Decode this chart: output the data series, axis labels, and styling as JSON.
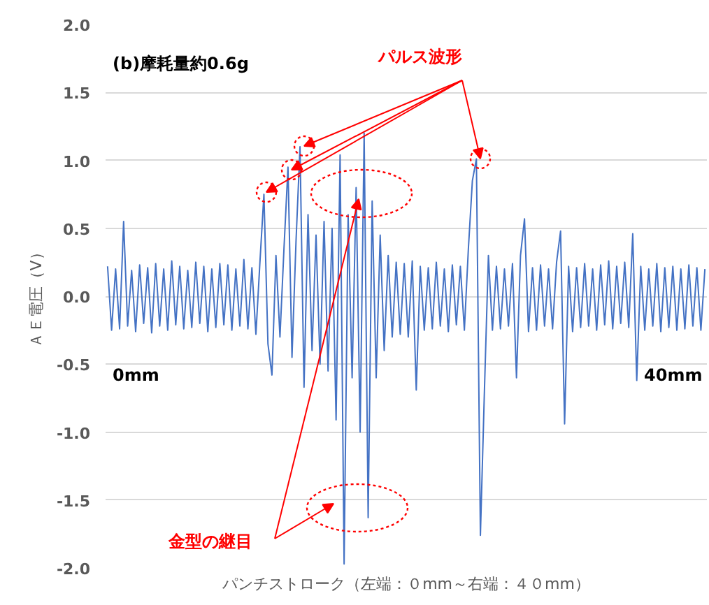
{
  "chart_data": {
    "type": "line",
    "xlabel": "パンチストローク（左端：０mm～右端：４０mm）",
    "ylabel": "ＡＥ電圧（V）",
    "annotations": [
      "(b)摩耗量約0.6g",
      "0mm",
      "40mm",
      "パルス波形",
      "金型の継目"
    ],
    "categories": [
      null,
      null,
      null,
      null,
      null,
      null,
      null,
      null,
      null,
      null,
      null,
      null,
      null,
      null,
      null,
      null,
      null,
      null,
      null,
      null,
      null,
      null,
      null,
      null,
      null,
      null,
      null,
      null,
      null,
      null,
      null,
      null,
      null,
      null,
      null,
      null,
      null,
      null,
      null,
      null,
      null,
      null,
      null,
      null,
      null,
      null,
      null,
      null,
      null,
      null,
      null,
      null,
      null,
      null,
      null,
      null,
      null,
      null,
      null,
      null,
      null,
      null,
      null,
      null,
      null,
      null,
      null,
      null,
      null,
      null,
      null,
      null,
      null,
      null,
      null,
      null,
      null,
      null,
      null,
      null,
      null,
      null,
      null,
      null,
      null,
      null,
      null,
      null,
      null,
      null,
      null,
      null,
      null,
      null,
      null,
      null,
      null,
      null,
      null,
      null,
      null,
      null,
      null,
      null,
      null,
      null,
      null,
      null,
      null,
      null,
      null,
      null,
      null,
      null,
      null,
      null,
      null,
      null,
      null,
      null,
      null,
      null,
      null,
      null,
      null,
      null,
      null,
      null,
      null,
      null,
      null,
      null,
      null,
      null,
      null,
      null,
      null,
      null,
      null,
      null,
      null,
      null,
      null,
      null,
      null,
      null,
      null,
      null,
      null,
      null
    ],
    "series": [
      {
        "color": "#4472c4",
        "values": [
          0.22,
          -0.25,
          0.2,
          -0.24,
          0.55,
          -0.22,
          0.19,
          -0.26,
          0.23,
          -0.2,
          0.21,
          -0.27,
          0.24,
          -0.22,
          0.2,
          -0.25,
          0.26,
          -0.21,
          0.22,
          -0.24,
          0.19,
          -0.23,
          0.25,
          -0.2,
          0.22,
          -0.26,
          0.2,
          -0.23,
          0.24,
          -0.21,
          0.23,
          -0.25,
          0.2,
          -0.22,
          0.27,
          -0.24,
          0.21,
          -0.28,
          0.25,
          0.75,
          -0.35,
          -0.58,
          0.3,
          -0.3,
          0.35,
          0.95,
          -0.45,
          0.4,
          1.1,
          -0.67,
          0.6,
          -0.4,
          0.45,
          -0.5,
          0.55,
          -0.55,
          0.5,
          -0.91,
          1.04,
          -1.97,
          0.6,
          -0.6,
          0.8,
          -1.0,
          1.2,
          -1.63,
          0.7,
          -0.6,
          0.45,
          -0.4,
          0.3,
          -0.3,
          0.25,
          -0.28,
          0.24,
          -0.3,
          0.26,
          -0.69,
          0.22,
          -0.25,
          0.21,
          -0.24,
          0.25,
          -0.22,
          0.2,
          -0.26,
          0.23,
          -0.21,
          0.22,
          -0.25,
          0.35,
          0.85,
          1.01,
          -1.76,
          -0.7,
          0.3,
          -0.25,
          0.22,
          -0.24,
          0.2,
          -0.22,
          0.24,
          -0.6,
          0.3,
          0.57,
          -0.26,
          0.21,
          -0.25,
          0.23,
          -0.22,
          0.2,
          -0.24,
          0.25,
          0.48,
          -0.94,
          0.22,
          -0.26,
          0.21,
          -0.23,
          0.24,
          -0.22,
          0.2,
          -0.25,
          0.23,
          -0.21,
          0.26,
          -0.24,
          0.22,
          -0.2,
          0.25,
          -0.23,
          0.46,
          -0.62,
          0.22,
          -0.25,
          0.2,
          -0.22,
          0.24,
          -0.26,
          0.21,
          -0.23,
          0.22,
          -0.25,
          0.2,
          -0.24,
          0.23,
          -0.22,
          0.21,
          -0.25,
          0.2
        ]
      }
    ],
    "ylim": [
      -2.0,
      2.0
    ],
    "yticks": [
      {
        "value": -2.0,
        "label": "-2.0"
      },
      {
        "value": -1.5,
        "label": "-1.5"
      },
      {
        "value": -1.0,
        "label": "-1.0"
      },
      {
        "value": -0.5,
        "label": "-0.5"
      },
      {
        "value": 0.0,
        "label": "0.0"
      },
      {
        "value": 0.5,
        "label": "0.5"
      },
      {
        "value": 1.0,
        "label": "1.0"
      },
      {
        "value": 1.5,
        "label": "1.5"
      },
      {
        "value": 2.0,
        "label": "2.0"
      }
    ],
    "grid": "y",
    "tick_labels": "y"
  }
}
